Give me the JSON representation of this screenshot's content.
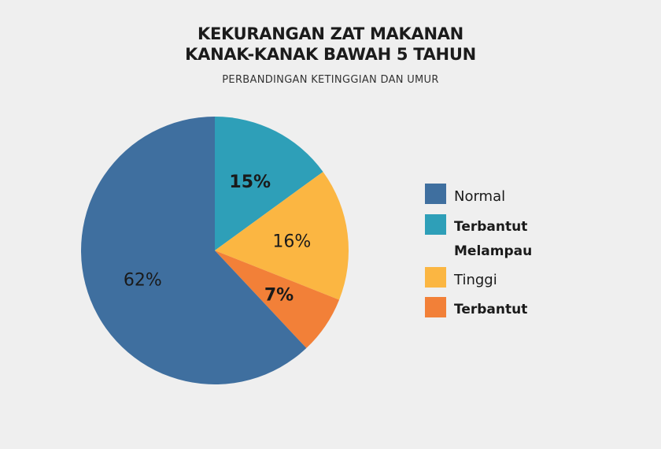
{
  "chart_data": {
    "type": "pie",
    "title_lines": [
      "KEKURANGAN ZAT MAKANAN",
      "KANAK-KANAK BAWAH 5 TAHUN"
    ],
    "subtitle": "PERBANDINGAN KETINGGIAN DAN UMUR",
    "slices": [
      {
        "name": "Terbantut Melampau",
        "value": 15,
        "label": "15%",
        "color": "#2e9fb8",
        "label_bold": true
      },
      {
        "name": "Tinggi",
        "value": 16,
        "label": "16%",
        "color": "#fbb642",
        "label_bold": false
      },
      {
        "name": "Terbantut",
        "value": 7,
        "label": "7%",
        "color": "#f28038",
        "label_bold": true
      },
      {
        "name": "Normal",
        "value": 62,
        "label": "62%",
        "color": "#3f6f9f",
        "label_bold": false
      }
    ],
    "legend": [
      {
        "name": "Normal",
        "color": "#3f6f9f",
        "bold": false
      },
      {
        "name": "Terbantut Melampau",
        "color": "#2e9fb8",
        "bold": true
      },
      {
        "name": "Tinggi",
        "color": "#fbb642",
        "bold": false
      },
      {
        "name": "Terbantut",
        "color": "#f28038",
        "bold": true
      }
    ],
    "legend_position": "right"
  }
}
